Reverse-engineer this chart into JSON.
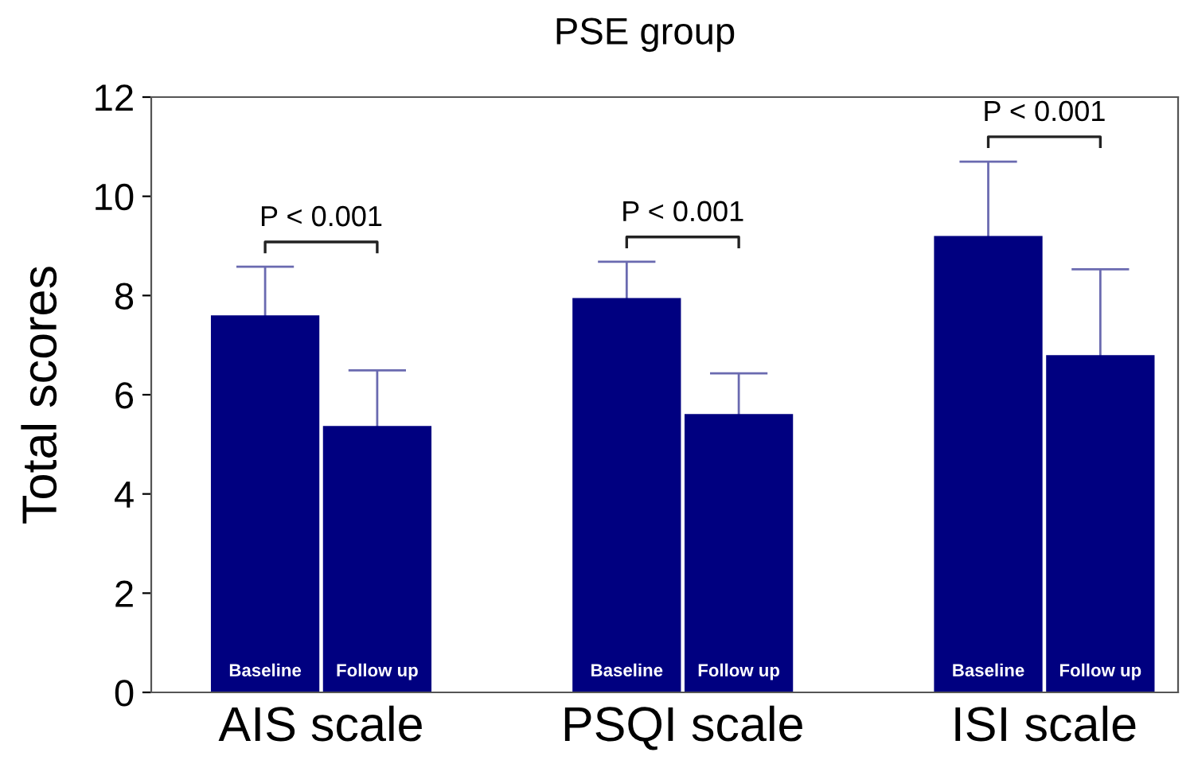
{
  "chart_data": {
    "type": "bar",
    "title": "PSE group",
    "ylabel": "Total scores",
    "categories": [
      "AIS scale",
      "PSQI scale",
      "ISI scale"
    ],
    "series": [
      {
        "name": "Baseline",
        "color": "#000080",
        "values": [
          7.6,
          7.95,
          9.2
        ],
        "errors": [
          0.98,
          0.73,
          1.5
        ]
      },
      {
        "name": "Follow up",
        "color": "#000080",
        "values": [
          5.37,
          5.61,
          6.8
        ],
        "errors": [
          1.12,
          0.82,
          1.73
        ]
      }
    ],
    "ylim": [
      0,
      12
    ],
    "yticks": [
      0,
      2,
      4,
      6,
      8,
      10,
      12
    ],
    "grid": false,
    "legend": false,
    "annotations": [
      "P < 0.001",
      "P < 0.001",
      "P < 0.001"
    ]
  }
}
